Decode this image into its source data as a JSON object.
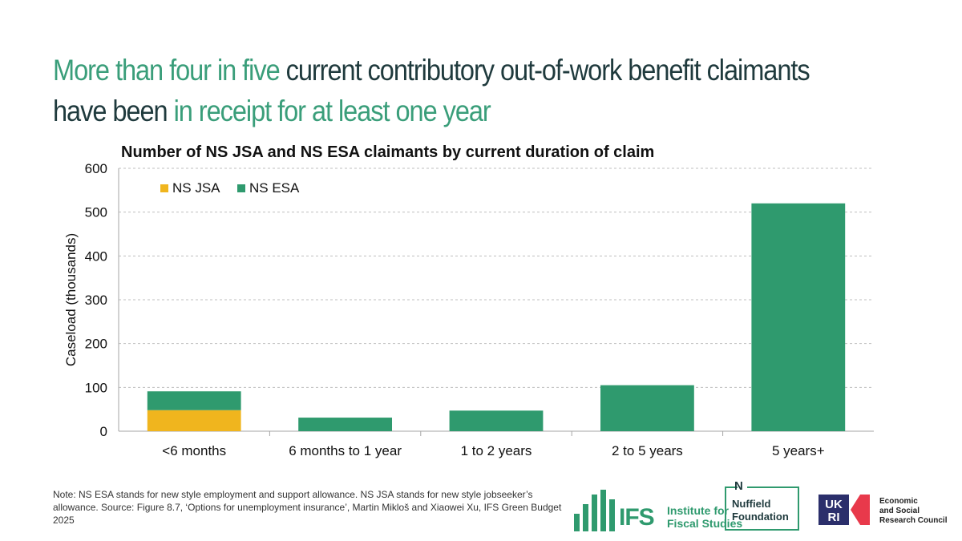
{
  "headline": {
    "part1": "More than four in five",
    "part2": " current contributory out-of-work benefit claimants have been ",
    "part3": "in receipt for at least one year"
  },
  "chart_data": {
    "type": "bar",
    "stacked": true,
    "title": "Number of NS JSA and NS ESA claimants by current duration of claim",
    "categories": [
      "<6 months",
      "6 months to 1 year",
      "1 to 2 years",
      "2 to 5 years",
      "5 years+"
    ],
    "series": [
      {
        "name": "NS JSA",
        "color": "#f0b51e",
        "values": [
          48,
          0,
          0,
          0,
          0
        ]
      },
      {
        "name": "NS ESA",
        "color": "#2f9a6e",
        "values": [
          43,
          31,
          47,
          105,
          520
        ]
      }
    ],
    "xlabel": "",
    "ylabel": "Caseload (thousands)",
    "ylim": [
      0,
      600
    ],
    "yticks": [
      0,
      100,
      200,
      300,
      400,
      500,
      600
    ],
    "grid": true,
    "legend_position": "top-left"
  },
  "note": "Note: NS ESA stands for new style employment and support allowance. NS JSA stands for new style jobseeker’s allowance. Source: Figure 8.7, ‘Options for unemployment insurance’, Martin Mikloš and Xiaowei Xu, IFS Green Budget 2025",
  "logos": {
    "ifs": {
      "mark": "IFS",
      "line1": "Institute for",
      "line2": "Fiscal Studies"
    },
    "nuffield": {
      "line1": "Nuffield",
      "line2": "Foundation"
    },
    "esrc": {
      "line1": "Economic",
      "line2": "and Social",
      "line3": "Research Council"
    }
  }
}
